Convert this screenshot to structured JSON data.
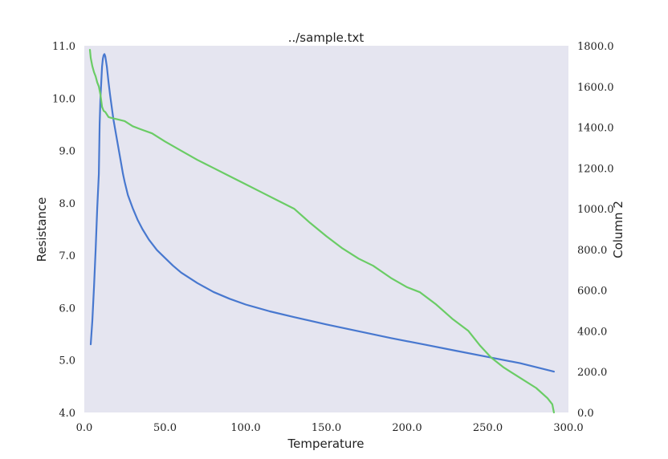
{
  "chart_data": {
    "type": "line",
    "title": "../sample.txt",
    "xlabel": "Temperature",
    "ylabel": "Resistance",
    "y2label": "Column 2",
    "xlim": [
      0,
      300
    ],
    "ylim": [
      4.0,
      11.0
    ],
    "y2lim": [
      0,
      1800
    ],
    "grid": false,
    "xticks": [
      "0.0",
      "50.0",
      "100.0",
      "150.0",
      "200.0",
      "250.0",
      "300.0"
    ],
    "yticks": [
      "4.0",
      "5.0",
      "6.0",
      "7.0",
      "8.0",
      "9.0",
      "10.0",
      "11.0"
    ],
    "y2ticks": [
      "0.0",
      "200.0",
      "400.0",
      "600.0",
      "800.0",
      "1000.0",
      "1200.0",
      "1400.0",
      "1600.0",
      "1800.0"
    ],
    "series": [
      {
        "axis": "left",
        "color": "#4878cf",
        "x": [
          4,
          5,
          6,
          7,
          8,
          9,
          9.5,
          10,
          10.5,
          11,
          11.5,
          12,
          12.5,
          13,
          14,
          15,
          16,
          18,
          20,
          22,
          24,
          25,
          27,
          30,
          33,
          36,
          40,
          45,
          50,
          55,
          60,
          70,
          80,
          90,
          100,
          115,
          130,
          150,
          170,
          190,
          210,
          230,
          250,
          270,
          291
        ],
        "y": [
          5.3,
          5.75,
          6.4,
          7.1,
          7.9,
          8.55,
          9.5,
          10.0,
          10.3,
          10.6,
          10.75,
          10.82,
          10.84,
          10.8,
          10.6,
          10.3,
          10.05,
          9.6,
          9.25,
          8.9,
          8.55,
          8.4,
          8.15,
          7.9,
          7.68,
          7.5,
          7.3,
          7.1,
          6.95,
          6.8,
          6.67,
          6.47,
          6.3,
          6.17,
          6.06,
          5.93,
          5.82,
          5.68,
          5.55,
          5.42,
          5.3,
          5.18,
          5.06,
          4.94,
          4.78
        ]
      },
      {
        "axis": "right",
        "color": "#6acc65",
        "x": [
          3.5,
          4,
          5,
          6,
          7,
          8,
          9,
          10,
          11,
          12,
          13,
          15,
          17,
          20,
          25,
          30,
          35,
          42,
          50,
          60,
          70,
          80,
          90,
          100,
          110,
          120,
          130,
          140,
          150,
          160,
          170,
          179,
          190,
          200,
          208,
          218,
          228,
          238,
          245,
          252,
          260,
          270,
          280,
          287,
          290,
          291
        ],
        "y": [
          1780,
          1740,
          1700,
          1670,
          1650,
          1620,
          1600,
          1560,
          1500,
          1480,
          1475,
          1450,
          1445,
          1440,
          1430,
          1405,
          1390,
          1370,
          1330,
          1285,
          1240,
          1200,
          1160,
          1120,
          1080,
          1040,
          1000,
          930,
          865,
          805,
          755,
          720,
          660,
          615,
          590,
          530,
          460,
          400,
          330,
          270,
          220,
          170,
          120,
          70,
          40,
          0
        ]
      }
    ]
  }
}
